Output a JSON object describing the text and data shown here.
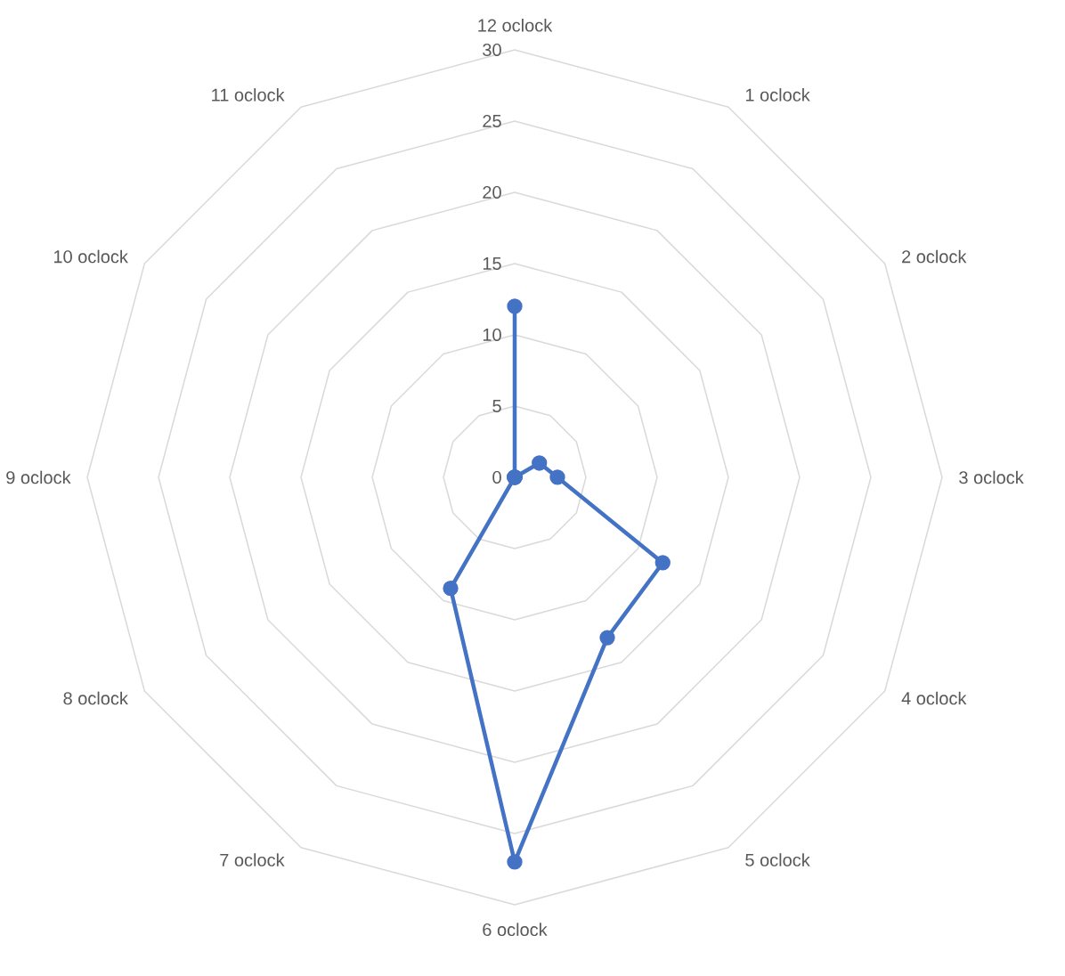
{
  "chart_data": {
    "type": "radar",
    "categories": [
      "12 oclock",
      "1 oclock",
      "2 oclock",
      "3 oclock",
      "4 oclock",
      "5 oclock",
      "6 oclock",
      "7 oclock",
      "8 oclock",
      "9 oclock",
      "10 oclock",
      "11 oclock"
    ],
    "series": [
      {
        "color": "#4472c4",
        "values": [
          12,
          0,
          2,
          3,
          12,
          13,
          27,
          9,
          0,
          0,
          0,
          0
        ]
      }
    ],
    "ylim": [
      0,
      30
    ],
    "yticks": [
      0,
      5,
      10,
      15,
      20,
      25,
      30
    ],
    "grid": true,
    "marker": "circle",
    "line_style": "solid"
  }
}
